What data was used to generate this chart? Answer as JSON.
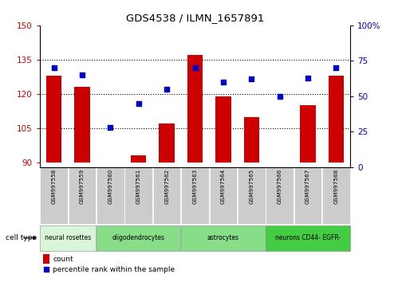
{
  "title": "GDS4538 / ILMN_1657891",
  "samples": [
    "GSM997558",
    "GSM997559",
    "GSM997560",
    "GSM997561",
    "GSM997562",
    "GSM997563",
    "GSM997564",
    "GSM997565",
    "GSM997566",
    "GSM997567",
    "GSM997568"
  ],
  "counts": [
    128,
    123,
    90,
    93,
    107,
    137,
    119,
    110,
    90,
    115,
    128
  ],
  "percentile_ranks": [
    70,
    65,
    28,
    45,
    55,
    70,
    60,
    62,
    50,
    63,
    70
  ],
  "ylim_left": [
    88,
    150
  ],
  "ylim_right": [
    0,
    100
  ],
  "yticks_left": [
    90,
    105,
    120,
    135,
    150
  ],
  "yticks_right": [
    0,
    25,
    50,
    75,
    100
  ],
  "bar_color": "#cc0000",
  "dot_color": "#0000cc",
  "cell_types": [
    {
      "label": "neural rosettes",
      "start": 0,
      "end": 2,
      "color": "#d8f5d8"
    },
    {
      "label": "oligodendrocytes",
      "start": 2,
      "end": 5,
      "color": "#88dd88"
    },
    {
      "label": "astrocytes",
      "start": 5,
      "end": 8,
      "color": "#88dd88"
    },
    {
      "label": "neurons CD44- EGFR-",
      "start": 8,
      "end": 11,
      "color": "#44cc44"
    }
  ],
  "tick_label_bg": "#cccccc",
  "legend_count_label": "count",
  "legend_pct_label": "percentile rank within the sample",
  "ylabel_left_color": "#cc0000",
  "ylabel_right_color": "#0000cc",
  "base_value": 90,
  "gridline_ticks": [
    105,
    120,
    135
  ],
  "cell_type_label": "cell type"
}
